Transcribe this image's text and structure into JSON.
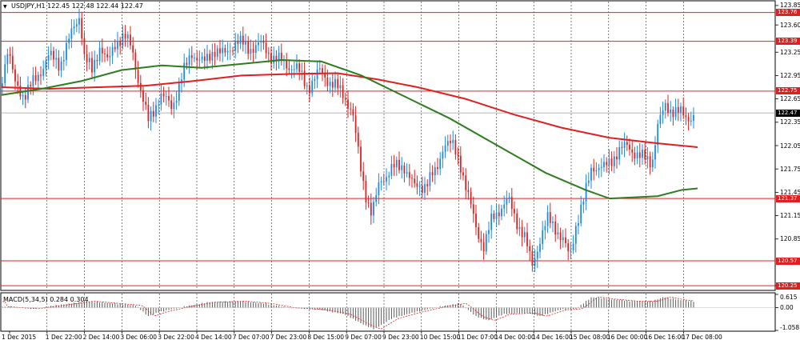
{
  "main": {
    "symbol_label": "USDJPY,H1  122.45 122.48 122.44 122.47",
    "y_ticks": [
      "123.85",
      "123.60",
      "123.25",
      "122.95",
      "122.65",
      "122.35",
      "122.05",
      "121.75",
      "121.45",
      "121.15",
      "120.85",
      "120.25"
    ],
    "levels": [
      {
        "value": 123.76,
        "label": "123.76",
        "color": "#e02020"
      },
      {
        "value": 123.39,
        "label": "123.39",
        "color": "#e02020"
      },
      {
        "value": 122.75,
        "label": "122.75",
        "color": "#e02020"
      },
      {
        "value": 121.37,
        "label": "121.37",
        "color": "#e02020"
      },
      {
        "value": 120.57,
        "label": "120.57",
        "color": "#e02020"
      },
      {
        "value": 120.25,
        "label": "120.25",
        "color": "#e02020"
      }
    ],
    "current_price": {
      "value": 122.47,
      "label": "122.47"
    },
    "colors": {
      "bull": "#1e88e5",
      "bear": "#e02020",
      "ma_red": "#e02020",
      "ma_green": "#2e7d1e",
      "grid": "#000000"
    }
  },
  "macd": {
    "label": "MACD(5,34,5) 0.284 0.304",
    "y_ticks": [
      "0.615",
      "0.00",
      "-1.058"
    ]
  },
  "x_ticks": [
    "1 Dec 2015",
    "1 Dec 22:00",
    "2 Dec 14:00",
    "3 Dec 06:00",
    "3 Dec 22:00",
    "4 Dec 14:00",
    "7 Dec 07:00",
    "7 Dec 23:00",
    "8 Dec 15:00",
    "9 Dec 07:00",
    "9 Dec 23:00",
    "10 Dec 15:00",
    "11 Dec 07:00",
    "14 Dec 00:00",
    "14 Dec 16:00",
    "15 Dec 08:00",
    "16 Dec 00:00",
    "16 Dec 16:00",
    "17 Dec 08:00"
  ],
  "chart_data": {
    "type": "candlestick",
    "symbol": "USDJPY",
    "timeframe": "H1",
    "ohlc_last": {
      "open": 122.45,
      "high": 122.48,
      "low": 122.44,
      "close": 122.47
    },
    "price_range": [
      120.2,
      123.9
    ],
    "path": [
      [
        0,
        122.8
      ],
      [
        10,
        123.3
      ],
      [
        18,
        122.85
      ],
      [
        30,
        122.7
      ],
      [
        45,
        122.9
      ],
      [
        60,
        123.2
      ],
      [
        75,
        123.1
      ],
      [
        90,
        123.5
      ],
      [
        100,
        123.75
      ],
      [
        105,
        123.2
      ],
      [
        115,
        123.0
      ],
      [
        125,
        123.35
      ],
      [
        135,
        123.1
      ],
      [
        145,
        123.4
      ],
      [
        155,
        123.45
      ],
      [
        165,
        123.3
      ],
      [
        175,
        122.8
      ],
      [
        185,
        122.35
      ],
      [
        200,
        122.7
      ],
      [
        215,
        122.55
      ],
      [
        228,
        122.95
      ],
      [
        240,
        123.25
      ],
      [
        255,
        123.1
      ],
      [
        268,
        123.3
      ],
      [
        280,
        123.2
      ],
      [
        295,
        123.4
      ],
      [
        310,
        123.3
      ],
      [
        325,
        123.35
      ],
      [
        340,
        123.2
      ],
      [
        355,
        123.1
      ],
      [
        370,
        123.05
      ],
      [
        385,
        122.8
      ],
      [
        400,
        123.0
      ],
      [
        415,
        122.85
      ],
      [
        430,
        122.7
      ],
      [
        440,
        122.5
      ],
      [
        450,
        121.8
      ],
      [
        458,
        121.4
      ],
      [
        465,
        121.15
      ],
      [
        475,
        121.6
      ],
      [
        490,
        121.75
      ],
      [
        505,
        121.8
      ],
      [
        518,
        121.5
      ],
      [
        530,
        121.55
      ],
      [
        545,
        121.7
      ],
      [
        555,
        122.1
      ],
      [
        565,
        122.05
      ],
      [
        575,
        121.85
      ],
      [
        585,
        121.4
      ],
      [
        595,
        121.0
      ],
      [
        605,
        120.75
      ],
      [
        615,
        121.1
      ],
      [
        625,
        121.25
      ],
      [
        635,
        121.35
      ],
      [
        645,
        121.1
      ],
      [
        655,
        120.9
      ],
      [
        665,
        120.5
      ],
      [
        675,
        120.85
      ],
      [
        685,
        121.1
      ],
      [
        695,
        121.0
      ],
      [
        705,
        120.8
      ],
      [
        712,
        120.6
      ],
      [
        720,
        121.05
      ],
      [
        730,
        121.35
      ],
      [
        740,
        121.8
      ],
      [
        755,
        121.75
      ],
      [
        770,
        121.95
      ],
      [
        785,
        122.05
      ],
      [
        800,
        121.9
      ],
      [
        815,
        121.85
      ],
      [
        822,
        122.3
      ],
      [
        832,
        122.55
      ],
      [
        845,
        122.5
      ],
      [
        858,
        122.4
      ],
      [
        870,
        122.47
      ]
    ],
    "ma_red": [
      [
        0,
        122.8
      ],
      [
        60,
        122.78
      ],
      [
        120,
        122.8
      ],
      [
        180,
        122.82
      ],
      [
        240,
        122.88
      ],
      [
        300,
        122.95
      ],
      [
        360,
        122.97
      ],
      [
        420,
        122.98
      ],
      [
        470,
        122.9
      ],
      [
        520,
        122.8
      ],
      [
        580,
        122.65
      ],
      [
        640,
        122.45
      ],
      [
        700,
        122.28
      ],
      [
        760,
        122.15
      ],
      [
        820,
        122.08
      ],
      [
        870,
        122.03
      ]
    ],
    "ma_green": [
      [
        0,
        122.7
      ],
      [
        50,
        122.78
      ],
      [
        100,
        122.88
      ],
      [
        150,
        123.02
      ],
      [
        200,
        123.08
      ],
      [
        250,
        123.05
      ],
      [
        300,
        123.1
      ],
      [
        350,
        123.15
      ],
      [
        400,
        123.13
      ],
      [
        450,
        122.95
      ],
      [
        500,
        122.7
      ],
      [
        560,
        122.4
      ],
      [
        620,
        122.05
      ],
      [
        680,
        121.7
      ],
      [
        730,
        121.48
      ],
      [
        760,
        121.37
      ],
      [
        820,
        121.4
      ],
      [
        850,
        121.48
      ],
      [
        870,
        121.5
      ]
    ],
    "macd_range": [
      -1.058,
      0.615
    ],
    "macd_path": [
      [
        0,
        0.05
      ],
      [
        40,
        -0.05
      ],
      [
        80,
        0.15
      ],
      [
        110,
        0.3
      ],
      [
        140,
        0.2
      ],
      [
        170,
        0.1
      ],
      [
        185,
        -0.4
      ],
      [
        200,
        -0.2
      ],
      [
        230,
        0.05
      ],
      [
        260,
        0.25
      ],
      [
        300,
        0.3
      ],
      [
        330,
        0.2
      ],
      [
        360,
        0.0
      ],
      [
        400,
        -0.1
      ],
      [
        430,
        -0.3
      ],
      [
        455,
        -0.8
      ],
      [
        468,
        -1.0
      ],
      [
        490,
        -0.5
      ],
      [
        520,
        -0.2
      ],
      [
        550,
        0.05
      ],
      [
        575,
        0.2
      ],
      [
        595,
        -0.4
      ],
      [
        610,
        -0.6
      ],
      [
        630,
        -0.3
      ],
      [
        660,
        -0.25
      ],
      [
        675,
        -0.4
      ],
      [
        700,
        -0.1
      ],
      [
        720,
        -0.05
      ],
      [
        740,
        0.5
      ],
      [
        760,
        0.4
      ],
      [
        790,
        0.3
      ],
      [
        815,
        0.3
      ],
      [
        830,
        0.5
      ],
      [
        850,
        0.35
      ],
      [
        870,
        0.28
      ]
    ]
  }
}
